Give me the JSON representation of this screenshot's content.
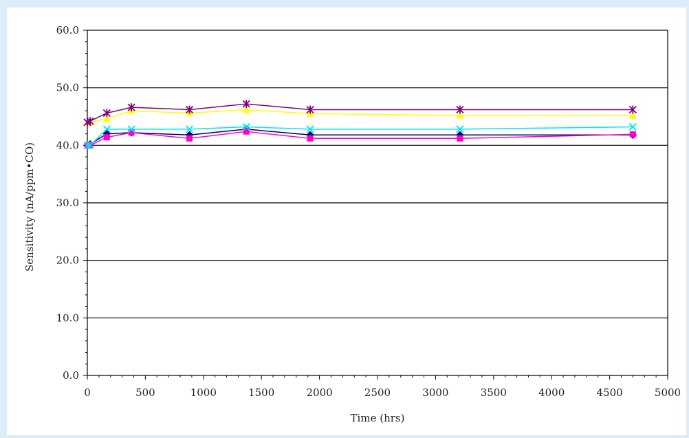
{
  "chart_data": {
    "type": "line",
    "title": "",
    "xlabel": "Time (hrs)",
    "ylabel": "Sensitivity (nA/ppm•CO)",
    "xlim": [
      0,
      5000
    ],
    "ylim": [
      0,
      60
    ],
    "x_ticks": [
      0,
      500,
      1000,
      1500,
      2000,
      2500,
      3000,
      3500,
      4000,
      4500,
      5000
    ],
    "y_ticks": [
      0,
      10,
      20,
      30,
      40,
      50,
      60
    ],
    "y_tick_labels": [
      "0.0",
      "10.0",
      "20.0",
      "30.0",
      "40.0",
      "50.0",
      "60.0"
    ],
    "grid": "horizontal-major",
    "legend": "none",
    "series": [
      {
        "color": "#000066",
        "marker": "diamond",
        "points": [
          [
            0,
            40.0
          ],
          [
            24,
            40.2
          ],
          [
            168,
            42.0
          ],
          [
            380,
            42.2
          ],
          [
            880,
            41.8
          ],
          [
            1370,
            42.8
          ],
          [
            1920,
            41.8
          ],
          [
            3210,
            41.8
          ],
          [
            4700,
            41.8
          ]
        ]
      },
      {
        "color": "#ff00cc",
        "marker": "square",
        "points": [
          [
            0,
            40.0
          ],
          [
            24,
            40.0
          ],
          [
            168,
            41.4
          ],
          [
            380,
            42.2
          ],
          [
            880,
            41.2
          ],
          [
            1370,
            42.4
          ],
          [
            1920,
            41.2
          ],
          [
            3210,
            41.2
          ],
          [
            4700,
            41.9
          ]
        ]
      },
      {
        "color": "#ffff00",
        "marker": "triangle",
        "points": [
          [
            0,
            44.0
          ],
          [
            24,
            44.0
          ],
          [
            168,
            44.6
          ],
          [
            380,
            46.0
          ],
          [
            880,
            45.6
          ],
          [
            1370,
            46.2
          ],
          [
            1920,
            45.5
          ],
          [
            3210,
            45.2
          ],
          [
            4700,
            45.2
          ]
        ]
      },
      {
        "color": "#00e6f0",
        "marker": "x",
        "points": [
          [
            0,
            40.0
          ],
          [
            24,
            40.0
          ],
          [
            168,
            42.8
          ],
          [
            380,
            42.8
          ],
          [
            880,
            42.8
          ],
          [
            1370,
            43.2
          ],
          [
            1920,
            42.8
          ],
          [
            3210,
            42.8
          ],
          [
            4700,
            43.2
          ]
        ]
      },
      {
        "color": "#800080",
        "marker": "star",
        "points": [
          [
            0,
            44.0
          ],
          [
            24,
            44.2
          ],
          [
            168,
            45.6
          ],
          [
            380,
            46.6
          ],
          [
            880,
            46.2
          ],
          [
            1370,
            47.2
          ],
          [
            1920,
            46.2
          ],
          [
            3210,
            46.2
          ],
          [
            4700,
            46.2
          ]
        ]
      }
    ]
  }
}
